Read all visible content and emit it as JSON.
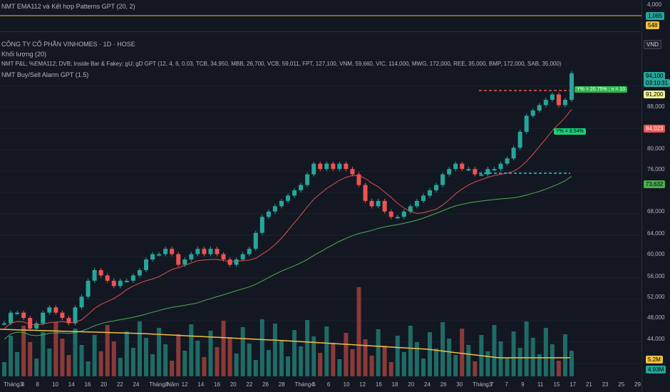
{
  "indicator_top": {
    "title": "NMT EMA112 và Kết hợp Patterns GPT (20, 2)",
    "axis_top": "4,000"
  },
  "header": {
    "symbol_title": "CÔNG TY CỔ PHẦN VINHOMES · 1D · HOSE",
    "volume_label": "Khối lượng (20)",
    "pnl_label": "NMT P&L; %EMA112; DVB; Inside Bar & Fakey; gU; gD GPT (12, 4, 6, 0.03, TCB, 34,950, MBB, 26,700, VCB, 59,011, FPT, 127,100, VNM, 59,660, VIC, 114,000, MWG, 172,000, REE, 35,000, BMP, 172,000, SAB, 35,000)",
    "alarm_label": "NMT Buy/Sell Alarm GPT (1.5)",
    "currency": "VND"
  },
  "price_axis": [
    "94,100",
    "88,000",
    "84,023",
    "80,000",
    "76,000",
    "73,632",
    "68,000",
    "64,000",
    "60,000",
    "56,000",
    "52,000",
    "48,000",
    "44,000"
  ],
  "price_tags": {
    "last": "94,100",
    "countdown": "03:10:31",
    "ema": "91,200",
    "red": "84,023",
    "green": "73,632",
    "vol1": "5.2M",
    "vol2": "4.93M",
    "top1": "1,065",
    "top2": "548"
  },
  "annotations": {
    "up_box": "Y% = 20.75% ; n = 10",
    "mid_box": "Y% = 8.54%"
  },
  "x_axis": [
    "Tháng 4",
    "3",
    "8",
    "10",
    "14",
    "16",
    "20",
    "22",
    "24",
    "Tháng Năm",
    "8",
    "12",
    "14",
    "16",
    "20",
    "22",
    "26",
    "28",
    "Tháng 6",
    "4",
    "6",
    "10",
    "12",
    "16",
    "18",
    "20",
    "24",
    "26",
    "30",
    "Tháng 7",
    "3",
    "7",
    "9",
    "11",
    "15",
    "17",
    "21",
    "23",
    "25",
    "29"
  ],
  "colors": {
    "bg": "#131722",
    "up": "#26a69a",
    "down": "#ef5350",
    "ema_red": "#d9534f",
    "ema_green": "#4caf50",
    "vol_ma": "#f0c040"
  }
}
